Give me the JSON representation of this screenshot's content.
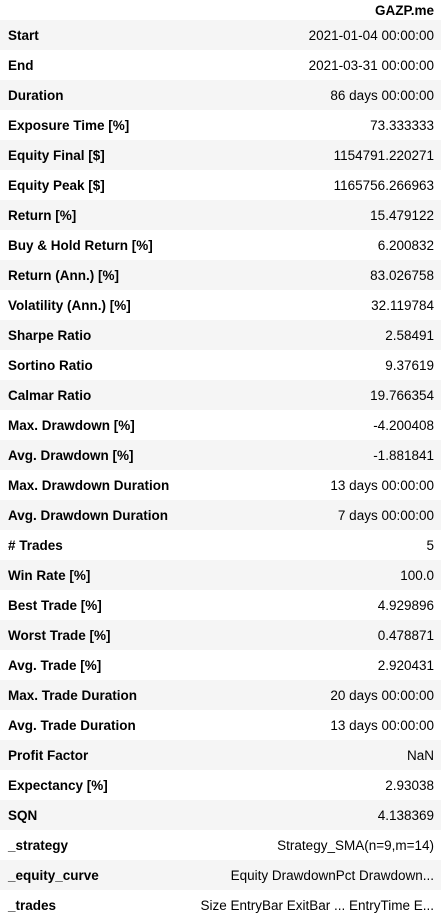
{
  "table": {
    "column_header": "GAZP.me",
    "rows": [
      {
        "label": "Start",
        "value": "2021-01-04 00:00:00"
      },
      {
        "label": "End",
        "value": "2021-03-31 00:00:00"
      },
      {
        "label": "Duration",
        "value": "86 days 00:00:00"
      },
      {
        "label": "Exposure Time [%]",
        "value": "73.333333"
      },
      {
        "label": "Equity Final [$]",
        "value": "1154791.220271"
      },
      {
        "label": "Equity Peak [$]",
        "value": "1165756.266963"
      },
      {
        "label": "Return [%]",
        "value": "15.479122"
      },
      {
        "label": "Buy & Hold Return [%]",
        "value": "6.200832"
      },
      {
        "label": "Return (Ann.) [%]",
        "value": "83.026758"
      },
      {
        "label": "Volatility (Ann.) [%]",
        "value": "32.119784"
      },
      {
        "label": "Sharpe Ratio",
        "value": "2.58491"
      },
      {
        "label": "Sortino Ratio",
        "value": "9.37619"
      },
      {
        "label": "Calmar Ratio",
        "value": "19.766354"
      },
      {
        "label": "Max. Drawdown [%]",
        "value": "-4.200408"
      },
      {
        "label": "Avg. Drawdown [%]",
        "value": "-1.881841"
      },
      {
        "label": "Max. Drawdown Duration",
        "value": "13 days 00:00:00"
      },
      {
        "label": "Avg. Drawdown Duration",
        "value": "7 days 00:00:00"
      },
      {
        "label": "# Trades",
        "value": "5"
      },
      {
        "label": "Win Rate [%]",
        "value": "100.0"
      },
      {
        "label": "Best Trade [%]",
        "value": "4.929896"
      },
      {
        "label": "Worst Trade [%]",
        "value": "0.478871"
      },
      {
        "label": "Avg. Trade [%]",
        "value": "2.920431"
      },
      {
        "label": "Max. Trade Duration",
        "value": "20 days 00:00:00"
      },
      {
        "label": "Avg. Trade Duration",
        "value": "13 days 00:00:00"
      },
      {
        "label": "Profit Factor",
        "value": "NaN"
      },
      {
        "label": "Expectancy [%]",
        "value": "2.93038"
      },
      {
        "label": "SQN",
        "value": "4.138369"
      },
      {
        "label": "_strategy",
        "value": "Strategy_SMA(n=9,m=14)"
      },
      {
        "label": "_equity_curve",
        "value": "Equity DrawdownPct Drawdown..."
      },
      {
        "label": "_trades",
        "value": "Size EntryBar ExitBar ... EntryTime E..."
      }
    ]
  }
}
